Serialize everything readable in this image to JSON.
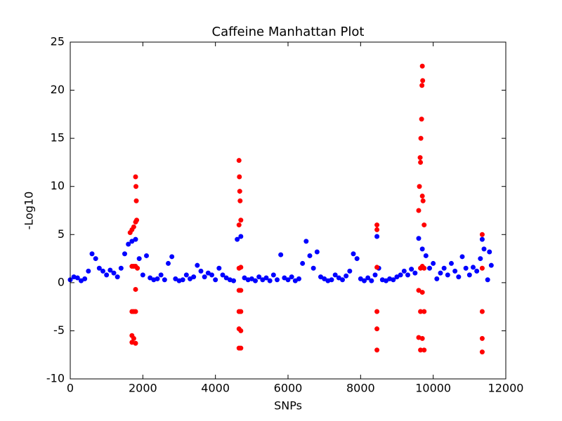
{
  "chart_data": {
    "type": "scatter",
    "title": "Caffeine Manhattan Plot",
    "x_label": "SNPs",
    "y_label": "-Log10",
    "xlim": [
      0,
      12000
    ],
    "ylim": [
      -10,
      25
    ],
    "xticks": [
      0,
      2000,
      4000,
      6000,
      8000,
      10000,
      12000
    ],
    "yticks": [
      -10,
      -5,
      0,
      5,
      10,
      15,
      20,
      25
    ],
    "grid": false,
    "series": [
      {
        "color": "#0000ff",
        "x": [
          0,
          100,
          200,
          300,
          400,
          500,
          600,
          700,
          800,
          900,
          1000,
          1100,
          1200,
          1300,
          1400,
          1500,
          1600,
          1700,
          1800,
          1900,
          2000,
          2100,
          2200,
          2300,
          2400,
          2500,
          2600,
          2700,
          2800,
          2900,
          3000,
          3100,
          3200,
          3300,
          3400,
          3500,
          3600,
          3700,
          3800,
          3900,
          4000,
          4100,
          4200,
          4300,
          4400,
          4500,
          4600,
          4700,
          4800,
          4900,
          5000,
          5100,
          5200,
          5300,
          5400,
          5500,
          5600,
          5700,
          5800,
          5900,
          6000,
          6100,
          6200,
          6300,
          6400,
          6500,
          6600,
          6700,
          6800,
          6900,
          7000,
          7100,
          7200,
          7300,
          7400,
          7500,
          7600,
          7700,
          7800,
          7900,
          8000,
          8100,
          8200,
          8300,
          8400,
          8450,
          8500,
          8600,
          8700,
          8800,
          8900,
          9000,
          9100,
          9200,
          9300,
          9400,
          9500,
          9600,
          9700,
          9800,
          9900,
          10000,
          10100,
          10200,
          10300,
          10400,
          10500,
          10600,
          10700,
          10800,
          10900,
          11000,
          11100,
          11200,
          11300,
          11350,
          11400,
          11500,
          11550,
          11600
        ],
        "values": [
          0.3,
          0.6,
          0.5,
          0.2,
          0.4,
          1.2,
          3.0,
          2.5,
          1.5,
          1.2,
          0.8,
          1.3,
          1.0,
          0.6,
          1.5,
          3.0,
          4.0,
          4.3,
          4.5,
          2.5,
          0.8,
          2.8,
          0.5,
          0.3,
          0.4,
          0.8,
          0.3,
          2.0,
          2.7,
          0.4,
          0.2,
          0.3,
          0.8,
          0.4,
          0.6,
          1.8,
          1.2,
          0.6,
          1.0,
          0.8,
          0.3,
          1.5,
          0.8,
          0.5,
          0.3,
          0.2,
          4.5,
          4.8,
          0.5,
          0.3,
          0.4,
          0.2,
          0.6,
          0.3,
          0.5,
          0.2,
          0.8,
          0.3,
          2.9,
          0.5,
          0.3,
          0.6,
          0.2,
          0.4,
          2.0,
          4.3,
          2.8,
          1.5,
          3.2,
          0.6,
          0.4,
          0.2,
          0.3,
          0.8,
          0.5,
          0.3,
          0.7,
          1.2,
          3.0,
          2.5,
          0.4,
          0.2,
          0.5,
          0.2,
          0.8,
          4.8,
          1.5,
          0.3,
          0.2,
          0.4,
          0.3,
          0.6,
          0.8,
          1.2,
          0.8,
          1.4,
          1.0,
          4.6,
          3.5,
          2.8,
          1.5,
          2.0,
          0.4,
          1.0,
          1.5,
          0.8,
          2.0,
          1.2,
          0.6,
          2.7,
          1.5,
          0.8,
          1.6,
          1.2,
          2.5,
          4.5,
          3.5,
          0.3,
          3.2,
          1.8
        ]
      },
      {
        "color": "#ff0000",
        "x": [
          1650,
          1700,
          1750,
          1800,
          1810,
          1820,
          1830,
          1800,
          1700,
          1750,
          1800,
          1700,
          1750,
          1800,
          1700,
          1750,
          1700,
          1800,
          1800,
          1850,
          4650,
          4660,
          4670,
          4680,
          4650,
          4700,
          4650,
          4700,
          4650,
          4700,
          4650,
          4700,
          4650,
          4700,
          4650,
          4700,
          8450,
          8450,
          8450,
          8450,
          8450,
          8450,
          9600,
          9620,
          9640,
          9660,
          9680,
          9690,
          9700,
          9710,
          9650,
          9700,
          9720,
          9750,
          9650,
          9700,
          9750,
          9600,
          9700,
          9650,
          9750,
          9600,
          9700,
          9650,
          9750,
          11350,
          11350,
          11350,
          11350,
          11350
        ],
        "values": [
          5.2,
          5.5,
          5.8,
          11,
          10,
          8.5,
          6.5,
          6.3,
          1.7,
          1.7,
          1.7,
          -3,
          -3,
          -3,
          -5.5,
          -5.8,
          -6.2,
          -6.3,
          -0.7,
          1.5,
          12.7,
          11,
          9.5,
          8.5,
          6.0,
          6.5,
          1.5,
          1.6,
          -0.8,
          -0.8,
          -3,
          -3,
          -4.8,
          -5,
          -6.8,
          -6.8,
          6.0,
          5.5,
          1.6,
          -3,
          -4.8,
          -7.0,
          7.5,
          10,
          13,
          15,
          17,
          20.5,
          22.5,
          21,
          12.5,
          9,
          8.5,
          6,
          1.5,
          1.7,
          1.5,
          -0.8,
          -1,
          -3,
          -3,
          -5.7,
          -5.8,
          -7,
          -7,
          5.0,
          1.5,
          -3,
          -5.8,
          -7.2
        ]
      }
    ]
  }
}
